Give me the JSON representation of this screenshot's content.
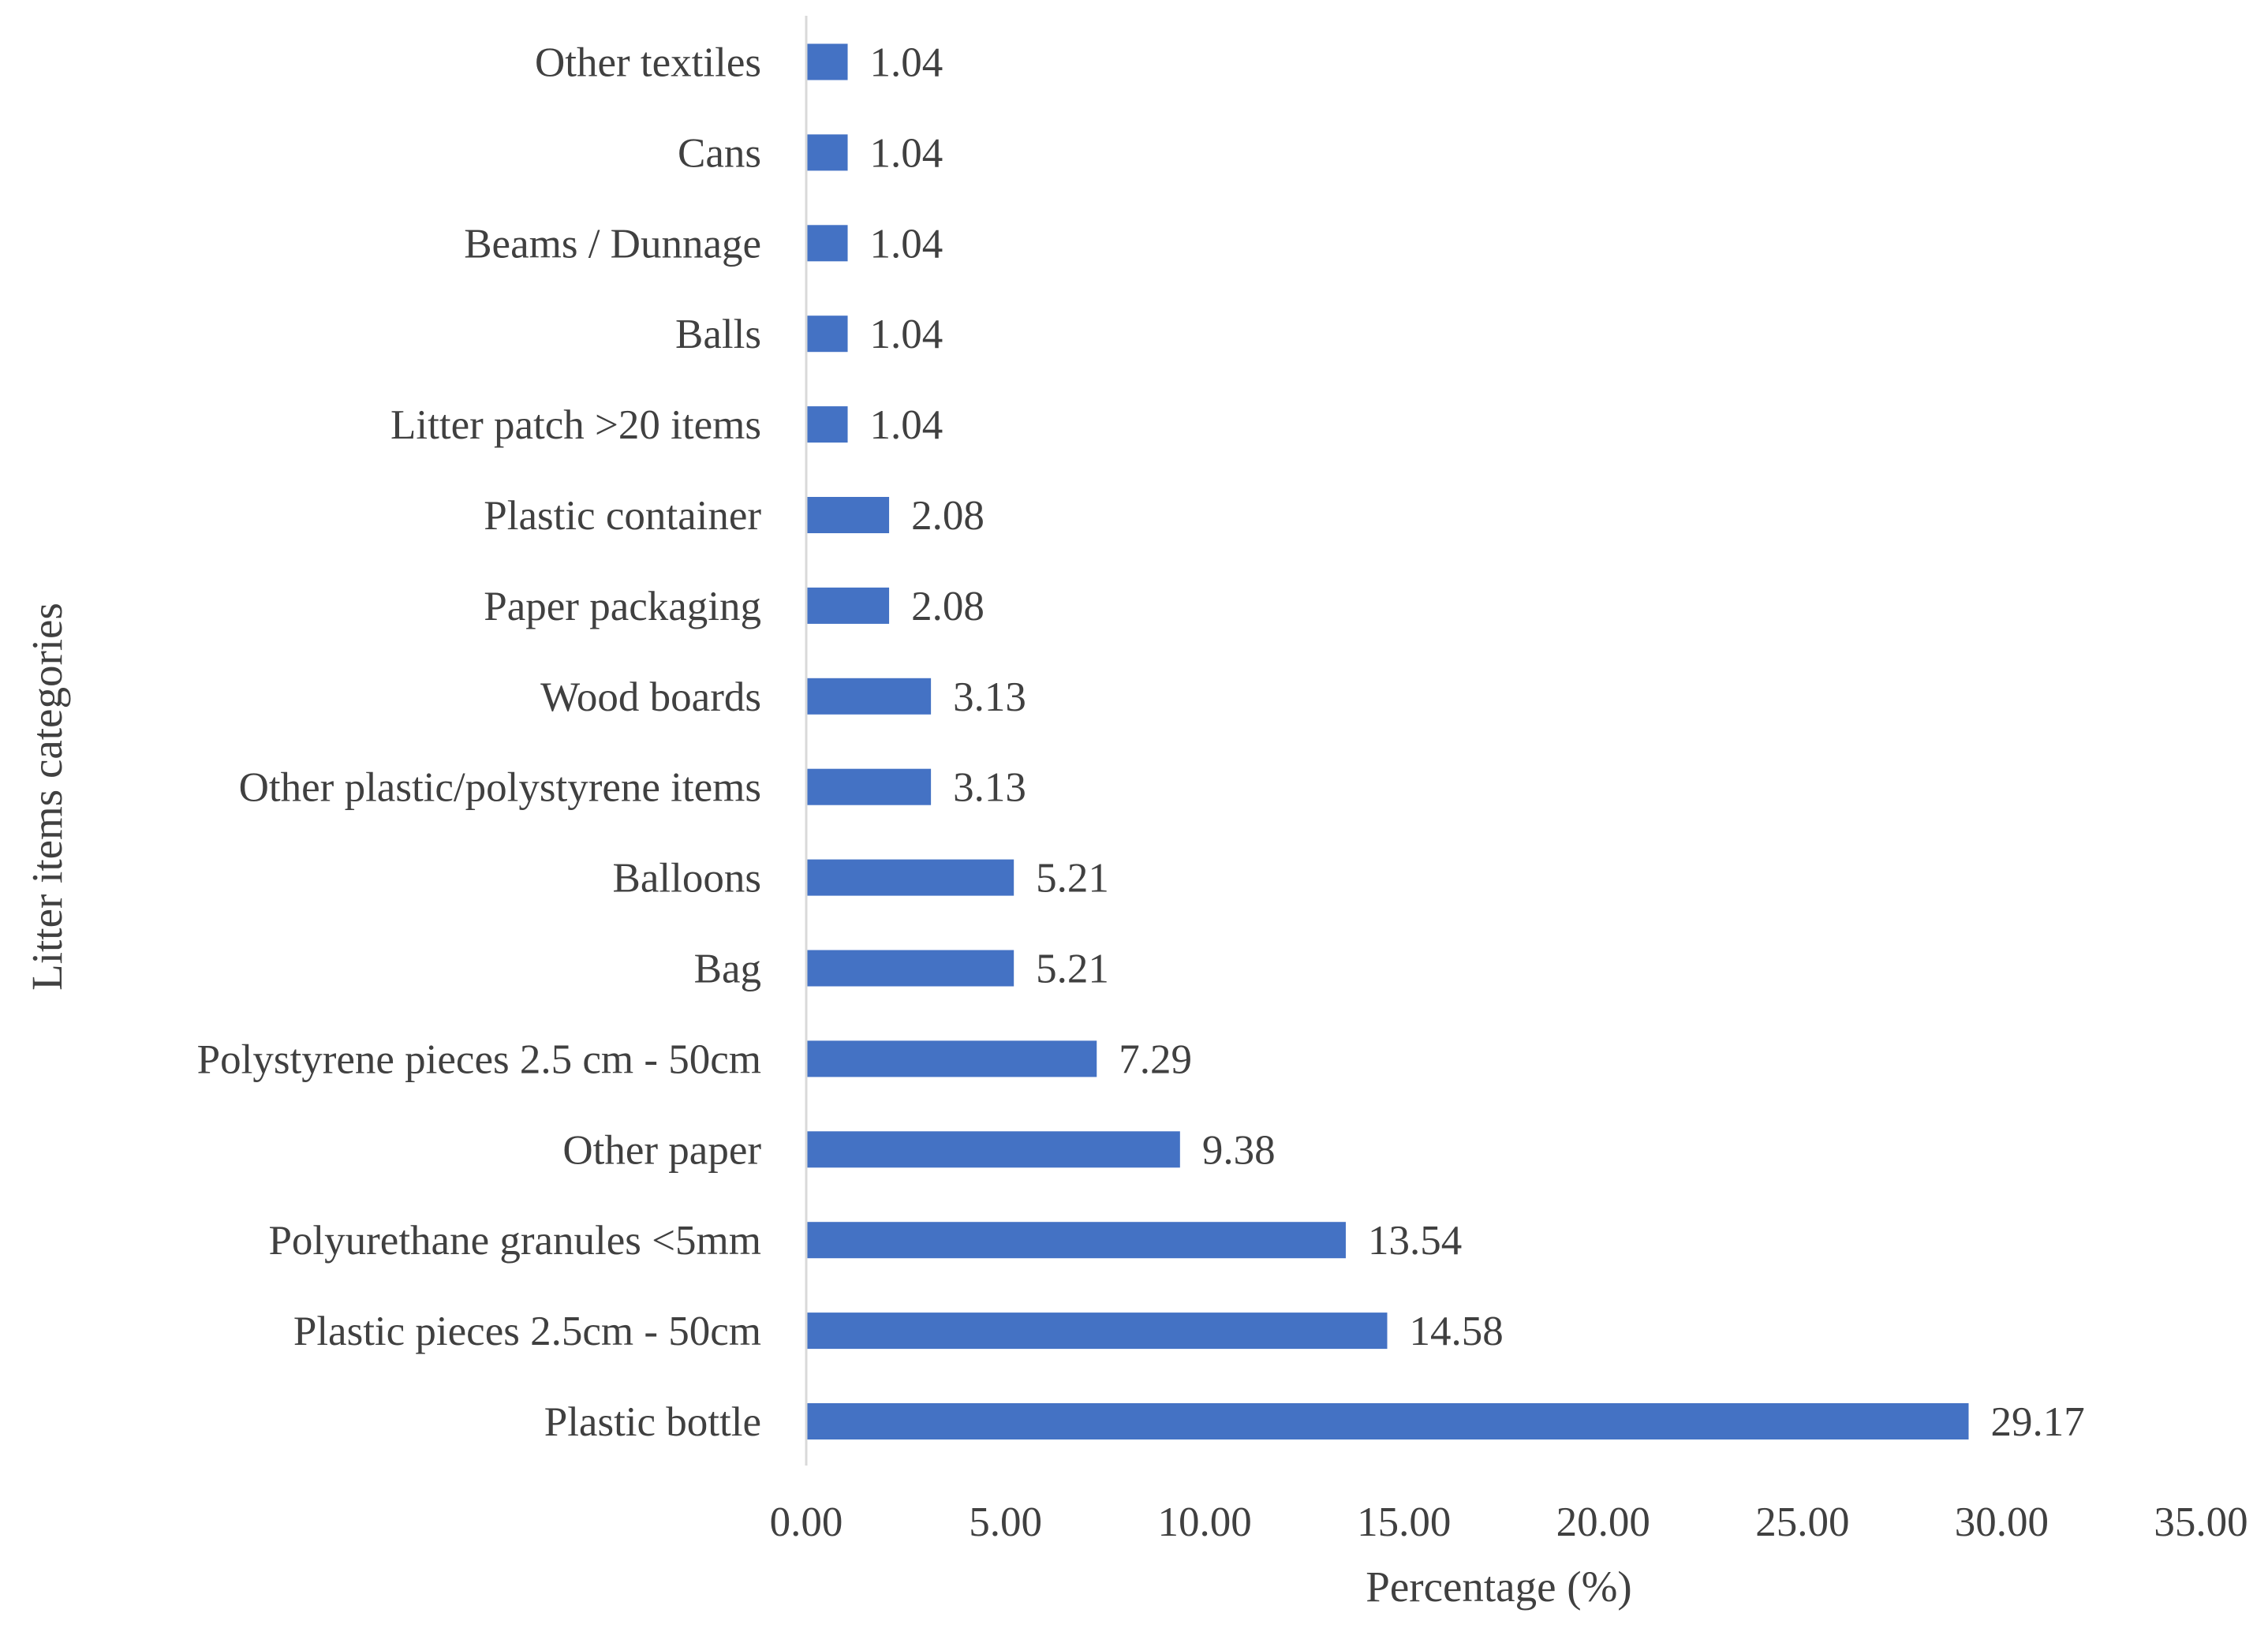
{
  "chart_data": {
    "type": "bar",
    "orientation": "horizontal",
    "title": "",
    "xlabel": "Percentage  (%)",
    "ylabel": "Litter items categories",
    "xlim": [
      0,
      35
    ],
    "xticks": [
      "0.00",
      "5.00",
      "10.00",
      "15.00",
      "20.00",
      "25.00",
      "30.00",
      "35.00"
    ],
    "grid": false,
    "legend": "none",
    "bar_color": "#4472C4",
    "categories": [
      "Plastic bottle",
      "Plastic pieces 2.5cm - 50cm",
      "Polyurethane granules <5mm",
      "Other paper",
      "Polystyrene pieces 2.5 cm - 50cm",
      "Bag",
      "Balloons",
      "Other plastic/polystyrene items",
      "Wood boards",
      "Paper packaging",
      "Plastic container",
      "Litter patch >20 items",
      "Balls",
      "Beams / Dunnage",
      "Cans",
      "Other textiles"
    ],
    "values": [
      29.17,
      14.58,
      13.54,
      9.38,
      7.29,
      5.21,
      5.21,
      3.13,
      3.13,
      2.08,
      2.08,
      1.04,
      1.04,
      1.04,
      1.04,
      1.04
    ],
    "value_labels": [
      "29.17",
      "14.58",
      "13.54",
      "9.38",
      "7.29",
      "5.21",
      "5.21",
      "3.13",
      "3.13",
      "2.08",
      "2.08",
      "1.04",
      "1.04",
      "1.04",
      "1.04",
      "1.04"
    ]
  }
}
